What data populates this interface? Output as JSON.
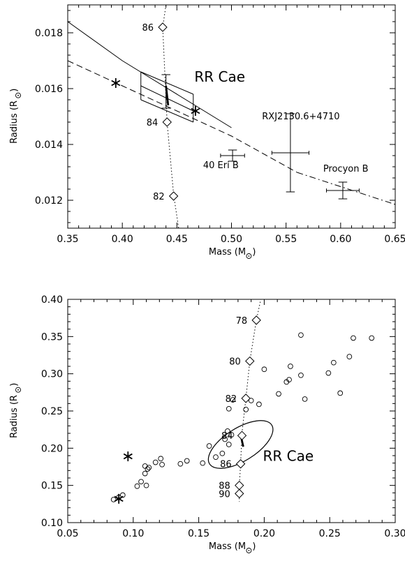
{
  "chart_data": [
    {
      "type": "scatter",
      "xlabel": "Mass (M",
      "ylabel": "Radius (R",
      "xlim": [
        0.35,
        0.65
      ],
      "ylim": [
        0.011,
        0.019
      ],
      "xticks": [
        0.35,
        0.4,
        0.45,
        0.5,
        0.55,
        0.6,
        0.65
      ],
      "yticks": [
        0.012,
        0.014,
        0.016,
        0.018
      ],
      "xtick_labels": [
        "0.35",
        "0.40",
        "0.45",
        "0.50",
        "0.55",
        "0.60",
        "0.65"
      ],
      "ytick_labels": [
        "0.012",
        "0.014",
        "0.016",
        "0.018"
      ],
      "theory_solid": [
        [
          0.35,
          0.0184
        ],
        [
          0.4,
          0.017
        ],
        [
          0.5,
          0.0146
        ]
      ],
      "theory_dashed": [
        [
          0.35,
          0.017
        ],
        [
          0.5,
          0.0143
        ],
        [
          0.56,
          0.013
        ]
      ],
      "theory_dashdot": [
        [
          0.56,
          0.013
        ],
        [
          0.65,
          0.01185
        ]
      ],
      "track": [
        [
          0.44,
          0.019
        ],
        [
          0.437,
          0.0182
        ],
        [
          0.441,
          0.0148
        ],
        [
          0.447,
          0.0122
        ],
        [
          0.452,
          0.0109
        ]
      ],
      "track_diamonds": [
        {
          "label": "86",
          "x": 0.437,
          "y": 0.0182
        },
        {
          "label": "84",
          "x": 0.441,
          "y": 0.0148
        },
        {
          "label": "82",
          "x": 0.447,
          "y": 0.01215
        }
      ],
      "stars": [
        {
          "x": 0.394,
          "y": 0.0162
        },
        {
          "x": 0.467,
          "y": 0.0152
        }
      ],
      "rrcae_errorbox": {
        "x": [
          0.417,
          0.465
        ],
        "y_top": [
          0.0166,
          0.0158
        ],
        "y_mid": [
          0.0161,
          0.0152
        ],
        "y_bot": [
          0.0156,
          0.0148
        ]
      },
      "rrcae_errorbar": {
        "x": 0.44,
        "y": 0.0159,
        "ylo": 0.0153,
        "yhi": 0.0165
      },
      "rrcae_segment": [
        [
          0.44,
          0.0161
        ],
        [
          0.442,
          0.0154
        ]
      ],
      "errorbars": [
        {
          "label": "40 Eri B",
          "x": 0.501,
          "xerr": 0.011,
          "y": 0.0136,
          "yerr": 0.0002
        },
        {
          "label": "RXJ2130.6+4710",
          "x": 0.554,
          "xerr": 0.017,
          "y": 0.0137,
          "yerr": 0.0014
        },
        {
          "label": "Procyon B",
          "x": 0.602,
          "xerr": 0.015,
          "y": 0.01235,
          "yerr": 0.0003
        }
      ],
      "annotations": {
        "rr_cae": "RR Cae",
        "rxj": "RXJ2130.6+4710",
        "eri": "40 Eri B",
        "procyon": "Procyon B"
      }
    },
    {
      "type": "scatter",
      "xlabel": "Mass (M",
      "ylabel": "Radius (R",
      "xlim": [
        0.05,
        0.3
      ],
      "ylim": [
        0.1,
        0.4
      ],
      "xticks": [
        0.05,
        0.1,
        0.15,
        0.2,
        0.25,
        0.3
      ],
      "yticks": [
        0.1,
        0.15,
        0.2,
        0.25,
        0.3,
        0.35,
        0.4
      ],
      "xtick_labels": [
        "0.05",
        "0.10",
        "0.15",
        "0.20",
        "0.25",
        "0.30"
      ],
      "ytick_labels": [
        "0.10",
        "0.15",
        "0.20",
        "0.25",
        "0.30",
        "0.35",
        "0.40"
      ],
      "circles": [
        [
          0.085,
          0.131
        ],
        [
          0.089,
          0.134
        ],
        [
          0.092,
          0.137
        ],
        [
          0.103,
          0.149
        ],
        [
          0.106,
          0.155
        ],
        [
          0.11,
          0.15
        ],
        [
          0.109,
          0.166
        ],
        [
          0.111,
          0.172
        ],
        [
          0.109,
          0.176
        ],
        [
          0.112,
          0.174
        ],
        [
          0.117,
          0.181
        ],
        [
          0.121,
          0.186
        ],
        [
          0.122,
          0.178
        ],
        [
          0.136,
          0.179
        ],
        [
          0.141,
          0.183
        ],
        [
          0.153,
          0.18
        ],
        [
          0.158,
          0.203
        ],
        [
          0.163,
          0.188
        ],
        [
          0.168,
          0.193
        ],
        [
          0.17,
          0.212
        ],
        [
          0.172,
          0.223
        ],
        [
          0.173,
          0.205
        ],
        [
          0.175,
          0.218
        ],
        [
          0.173,
          0.253
        ],
        [
          0.176,
          0.265
        ],
        [
          0.186,
          0.252
        ],
        [
          0.19,
          0.264
        ],
        [
          0.196,
          0.259
        ],
        [
          0.2,
          0.306
        ],
        [
          0.211,
          0.273
        ],
        [
          0.217,
          0.289
        ],
        [
          0.219,
          0.292
        ],
        [
          0.22,
          0.31
        ],
        [
          0.228,
          0.298
        ],
        [
          0.231,
          0.266
        ],
        [
          0.228,
          0.352
        ],
        [
          0.249,
          0.301
        ],
        [
          0.253,
          0.315
        ],
        [
          0.258,
          0.274
        ],
        [
          0.265,
          0.323
        ],
        [
          0.268,
          0.348
        ],
        [
          0.282,
          0.348
        ]
      ],
      "stars": [
        {
          "x": 0.096,
          "y": 0.189
        },
        {
          "x": 0.089,
          "y": 0.132
        }
      ],
      "track": [
        [
          0.198,
          0.405
        ],
        [
          0.194,
          0.372
        ],
        [
          0.189,
          0.317
        ],
        [
          0.186,
          0.267
        ],
        [
          0.183,
          0.22
        ],
        [
          0.182,
          0.18
        ],
        [
          0.181,
          0.15
        ],
        [
          0.181,
          0.139
        ],
        [
          0.181,
          0.128
        ]
      ],
      "track_diamonds": [
        {
          "label": "78",
          "x": 0.194,
          "y": 0.372
        },
        {
          "label": "80",
          "x": 0.189,
          "y": 0.317
        },
        {
          "label": "82",
          "x": 0.186,
          "y": 0.267
        },
        {
          "label": "84",
          "x": 0.183,
          "y": 0.217
        },
        {
          "label": "86",
          "x": 0.182,
          "y": 0.179
        },
        {
          "label": "88",
          "x": 0.181,
          "y": 0.15
        },
        {
          "label": "90",
          "x": 0.181,
          "y": 0.139
        }
      ],
      "ellipse": {
        "cx": 0.182,
        "cy": 0.205,
        "rx": 0.028,
        "ry": 0.022,
        "tilt_deg": -32
      },
      "rrcae_segment": [
        [
          0.182,
          0.218
        ],
        [
          0.184,
          0.202
        ]
      ],
      "annotations": {
        "rr_cae": "RR Cae"
      }
    }
  ]
}
